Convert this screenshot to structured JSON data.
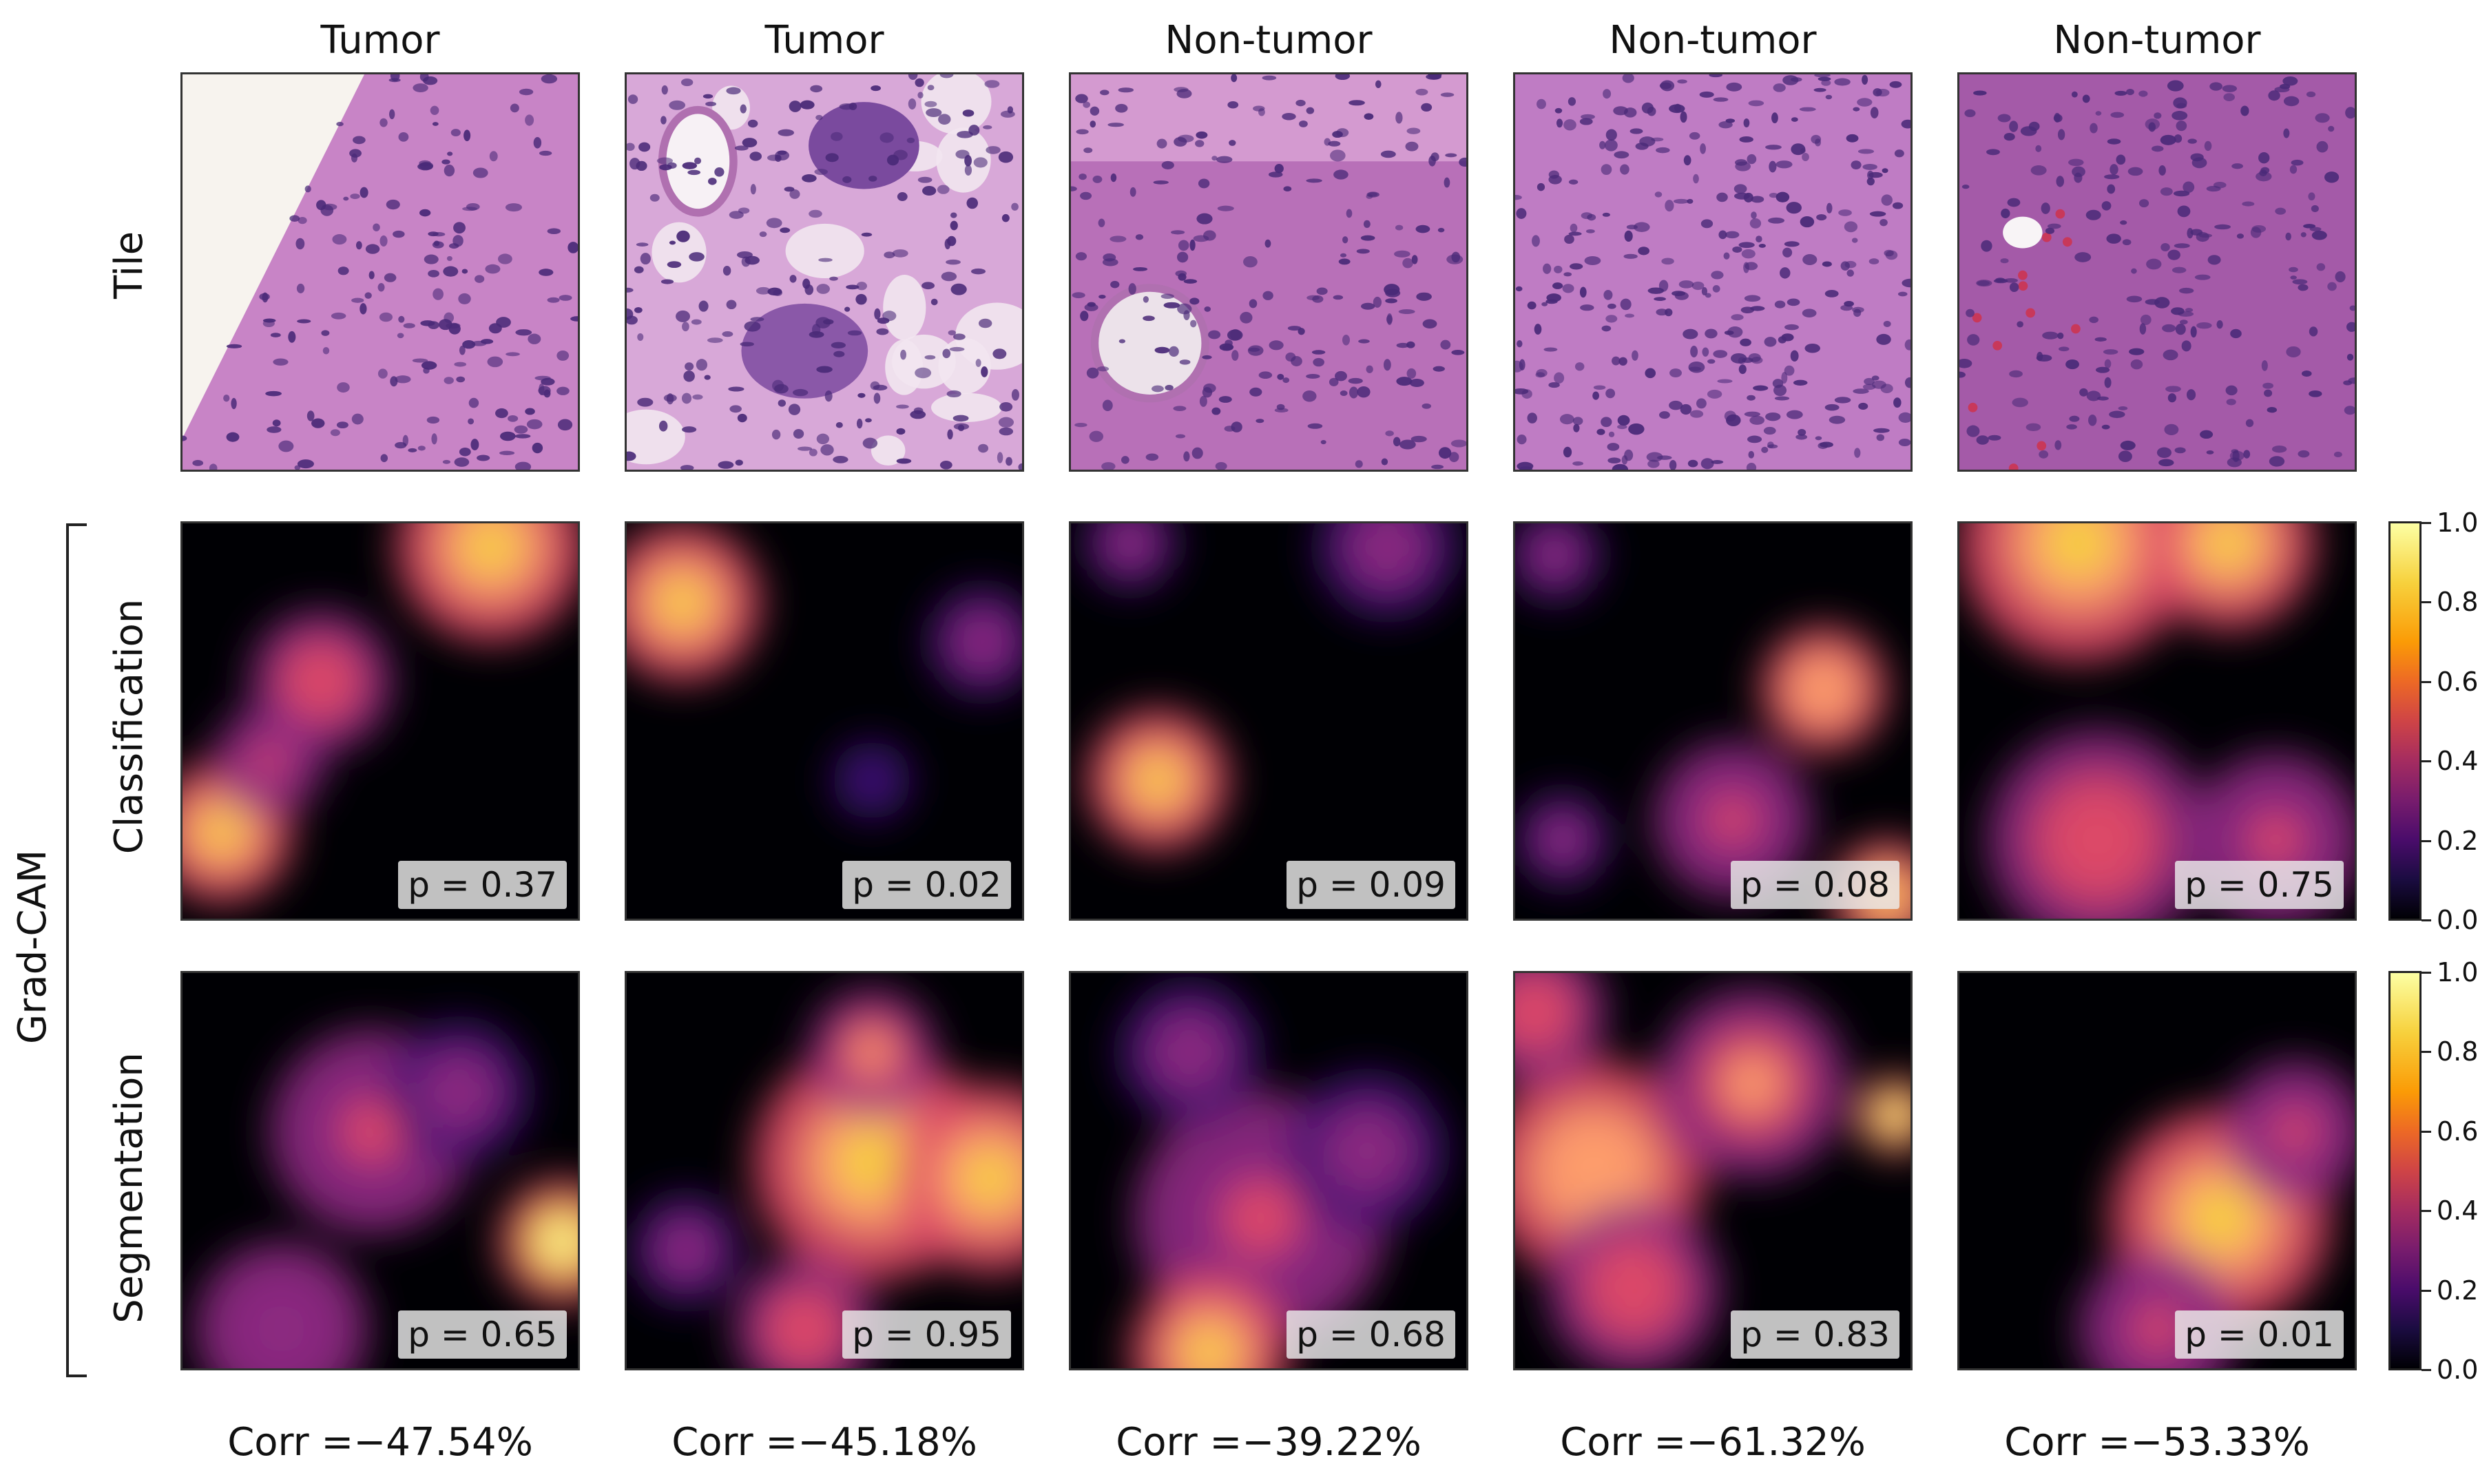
{
  "columns": [
    {
      "title": "Tumor",
      "cls_p": "p = 0.37",
      "seg_p": "p = 0.65",
      "corr": "Corr =−47.54%"
    },
    {
      "title": "Tumor",
      "cls_p": "p = 0.02",
      "seg_p": "p = 0.95",
      "corr": "Corr =−45.18%"
    },
    {
      "title": "Non-tumor",
      "cls_p": "p = 0.09",
      "seg_p": "p = 0.68",
      "corr": "Corr =−39.22%"
    },
    {
      "title": "Non-tumor",
      "cls_p": "p = 0.08",
      "seg_p": "p = 0.83",
      "corr": "Corr =−61.32%"
    },
    {
      "title": "Non-tumor",
      "cls_p": "p = 0.75",
      "seg_p": "p = 0.01",
      "corr": "Corr =−53.33%"
    }
  ],
  "rows": {
    "tile": "Tile",
    "group": "Grad-CAM",
    "classification": "Classification",
    "segmentation": "Segmentation"
  },
  "colorbar": {
    "colormap": "inferno",
    "ticks": [
      "0.0",
      "0.2",
      "0.4",
      "0.6",
      "0.8",
      "1.0"
    ]
  },
  "colors": {
    "tissue_pink": "#c37ac4",
    "nuclei_purple": "#4a2a78",
    "background_white": "#f7f3ee"
  }
}
